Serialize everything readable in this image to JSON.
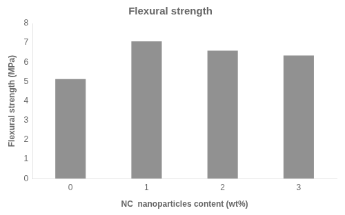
{
  "chart_data": {
    "type": "bar",
    "title": "Flexural strength",
    "xlabel": "NC  nanoparticles content (wt%)",
    "ylabel": "Flexural strength (MPa)",
    "categories": [
      "0",
      "1",
      "2",
      "3"
    ],
    "values": [
      5.13,
      7.08,
      6.6,
      6.35
    ],
    "color": "#919191",
    "ylim": [
      0,
      8
    ],
    "yticks": [
      0,
      1,
      2,
      3,
      4,
      5,
      6,
      7,
      8
    ],
    "grid": false
  }
}
